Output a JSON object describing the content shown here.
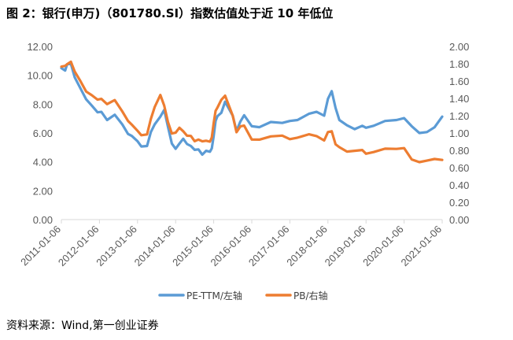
{
  "title": "图 2：银行(申万)（801780.SI）指数估值处于近 10 年低位",
  "source": "资料来源：Wind,第一创业证券",
  "chart_data": {
    "type": "line",
    "title": "图 2：银行(申万)（801780.SI）指数估值处于近 10 年低位",
    "x_categories": [
      "2011-01-06",
      "2012-01-06",
      "2013-01-06",
      "2014-01-06",
      "2015-01-06",
      "2016-01-06",
      "2017-01-06",
      "2018-01-06",
      "2019-01-06",
      "2020-01-06",
      "2021-01-06"
    ],
    "y_left": {
      "ticks": [
        "0.00",
        "2.00",
        "4.00",
        "6.00",
        "8.00",
        "10.00",
        "12.00"
      ],
      "ylim": [
        0,
        12
      ]
    },
    "y_right": {
      "ticks": [
        "0.00",
        "0.20",
        "0.40",
        "0.60",
        "0.80",
        "1.00",
        "1.20",
        "1.40",
        "1.60",
        "1.80",
        "2.00"
      ],
      "ylim": [
        0,
        2
      ]
    },
    "grid": false,
    "legend_position": "bottom-center",
    "series": [
      {
        "name": "PE-TTM/左轴",
        "axis": "left",
        "color": "#5B9BD5",
        "x": [
          0.0,
          0.1,
          0.15,
          0.25,
          0.35,
          0.5,
          0.65,
          0.8,
          0.95,
          1.05,
          1.2,
          1.4,
          1.6,
          1.75,
          1.85,
          2.0,
          2.1,
          2.25,
          2.35,
          2.45,
          2.6,
          2.7,
          2.8,
          2.9,
          3.0,
          3.1,
          3.2,
          3.3,
          3.4,
          3.5,
          3.6,
          3.7,
          3.8,
          3.9,
          3.95,
          4.0,
          4.05,
          4.1,
          4.2,
          4.3,
          4.5,
          4.6,
          4.7,
          4.8,
          5.0,
          5.2,
          5.5,
          5.8,
          6.0,
          6.2,
          6.5,
          6.7,
          6.9,
          7.0,
          7.1,
          7.2,
          7.3,
          7.5,
          7.7,
          7.9,
          8.0,
          8.2,
          8.5,
          8.8,
          9.0,
          9.2,
          9.4,
          9.6,
          9.8,
          10.0
        ],
        "values": [
          10.4,
          10.3,
          10.8,
          10.9,
          9.8,
          9.1,
          8.4,
          7.8,
          7.4,
          7.5,
          7.0,
          7.2,
          6.6,
          6.0,
          5.7,
          5.4,
          5.1,
          5.2,
          6.0,
          6.6,
          7.2,
          7.5,
          6.4,
          5.3,
          5.0,
          5.2,
          5.6,
          5.3,
          5.0,
          4.8,
          4.9,
          4.6,
          4.7,
          4.7,
          5.0,
          5.7,
          6.8,
          7.2,
          7.5,
          8.1,
          7.2,
          6.2,
          6.7,
          7.2,
          6.5,
          6.5,
          6.7,
          6.7,
          6.9,
          6.8,
          7.3,
          7.5,
          7.3,
          8.3,
          8.9,
          7.8,
          6.8,
          6.5,
          6.3,
          6.6,
          6.3,
          6.5,
          6.9,
          6.8,
          7.0,
          6.5,
          6.1,
          6.0,
          6.4,
          7.2
        ],
        "anchor": "#5B9BD5"
      },
      {
        "name": "PB/右轴",
        "axis": "right",
        "color": "#ED7D31",
        "x": [
          0.0,
          0.1,
          0.15,
          0.25,
          0.35,
          0.5,
          0.65,
          0.8,
          0.95,
          1.05,
          1.2,
          1.4,
          1.6,
          1.75,
          1.85,
          2.0,
          2.1,
          2.25,
          2.35,
          2.45,
          2.6,
          2.7,
          2.8,
          2.9,
          3.0,
          3.1,
          3.2,
          3.3,
          3.4,
          3.5,
          3.6,
          3.7,
          3.8,
          3.9,
          3.95,
          4.0,
          4.05,
          4.1,
          4.2,
          4.3,
          4.5,
          4.6,
          4.7,
          4.8,
          5.0,
          5.2,
          5.5,
          5.8,
          6.0,
          6.2,
          6.5,
          6.7,
          6.9,
          7.0,
          7.1,
          7.2,
          7.3,
          7.5,
          7.7,
          7.9,
          8.0,
          8.2,
          8.5,
          8.8,
          9.0,
          9.2,
          9.4,
          9.6,
          9.8,
          10.0
        ],
        "values": [
          1.75,
          1.77,
          1.8,
          1.84,
          1.7,
          1.6,
          1.49,
          1.42,
          1.38,
          1.4,
          1.35,
          1.37,
          1.25,
          1.15,
          1.08,
          1.02,
          0.98,
          1.0,
          1.15,
          1.3,
          1.45,
          1.3,
          1.12,
          1.0,
          1.02,
          1.05,
          1.02,
          0.98,
          0.95,
          0.9,
          0.93,
          0.92,
          0.9,
          0.9,
          0.96,
          1.1,
          1.25,
          1.3,
          1.4,
          1.42,
          1.2,
          1.02,
          1.06,
          1.08,
          0.93,
          0.94,
          0.95,
          0.97,
          0.94,
          0.93,
          0.98,
          0.97,
          0.93,
          1.0,
          1.02,
          0.88,
          0.82,
          0.78,
          0.8,
          0.82,
          0.75,
          0.78,
          0.83,
          0.8,
          0.82,
          0.7,
          0.68,
          0.67,
          0.7,
          0.7
        ],
        "anchor": "#ED7D31"
      }
    ]
  }
}
